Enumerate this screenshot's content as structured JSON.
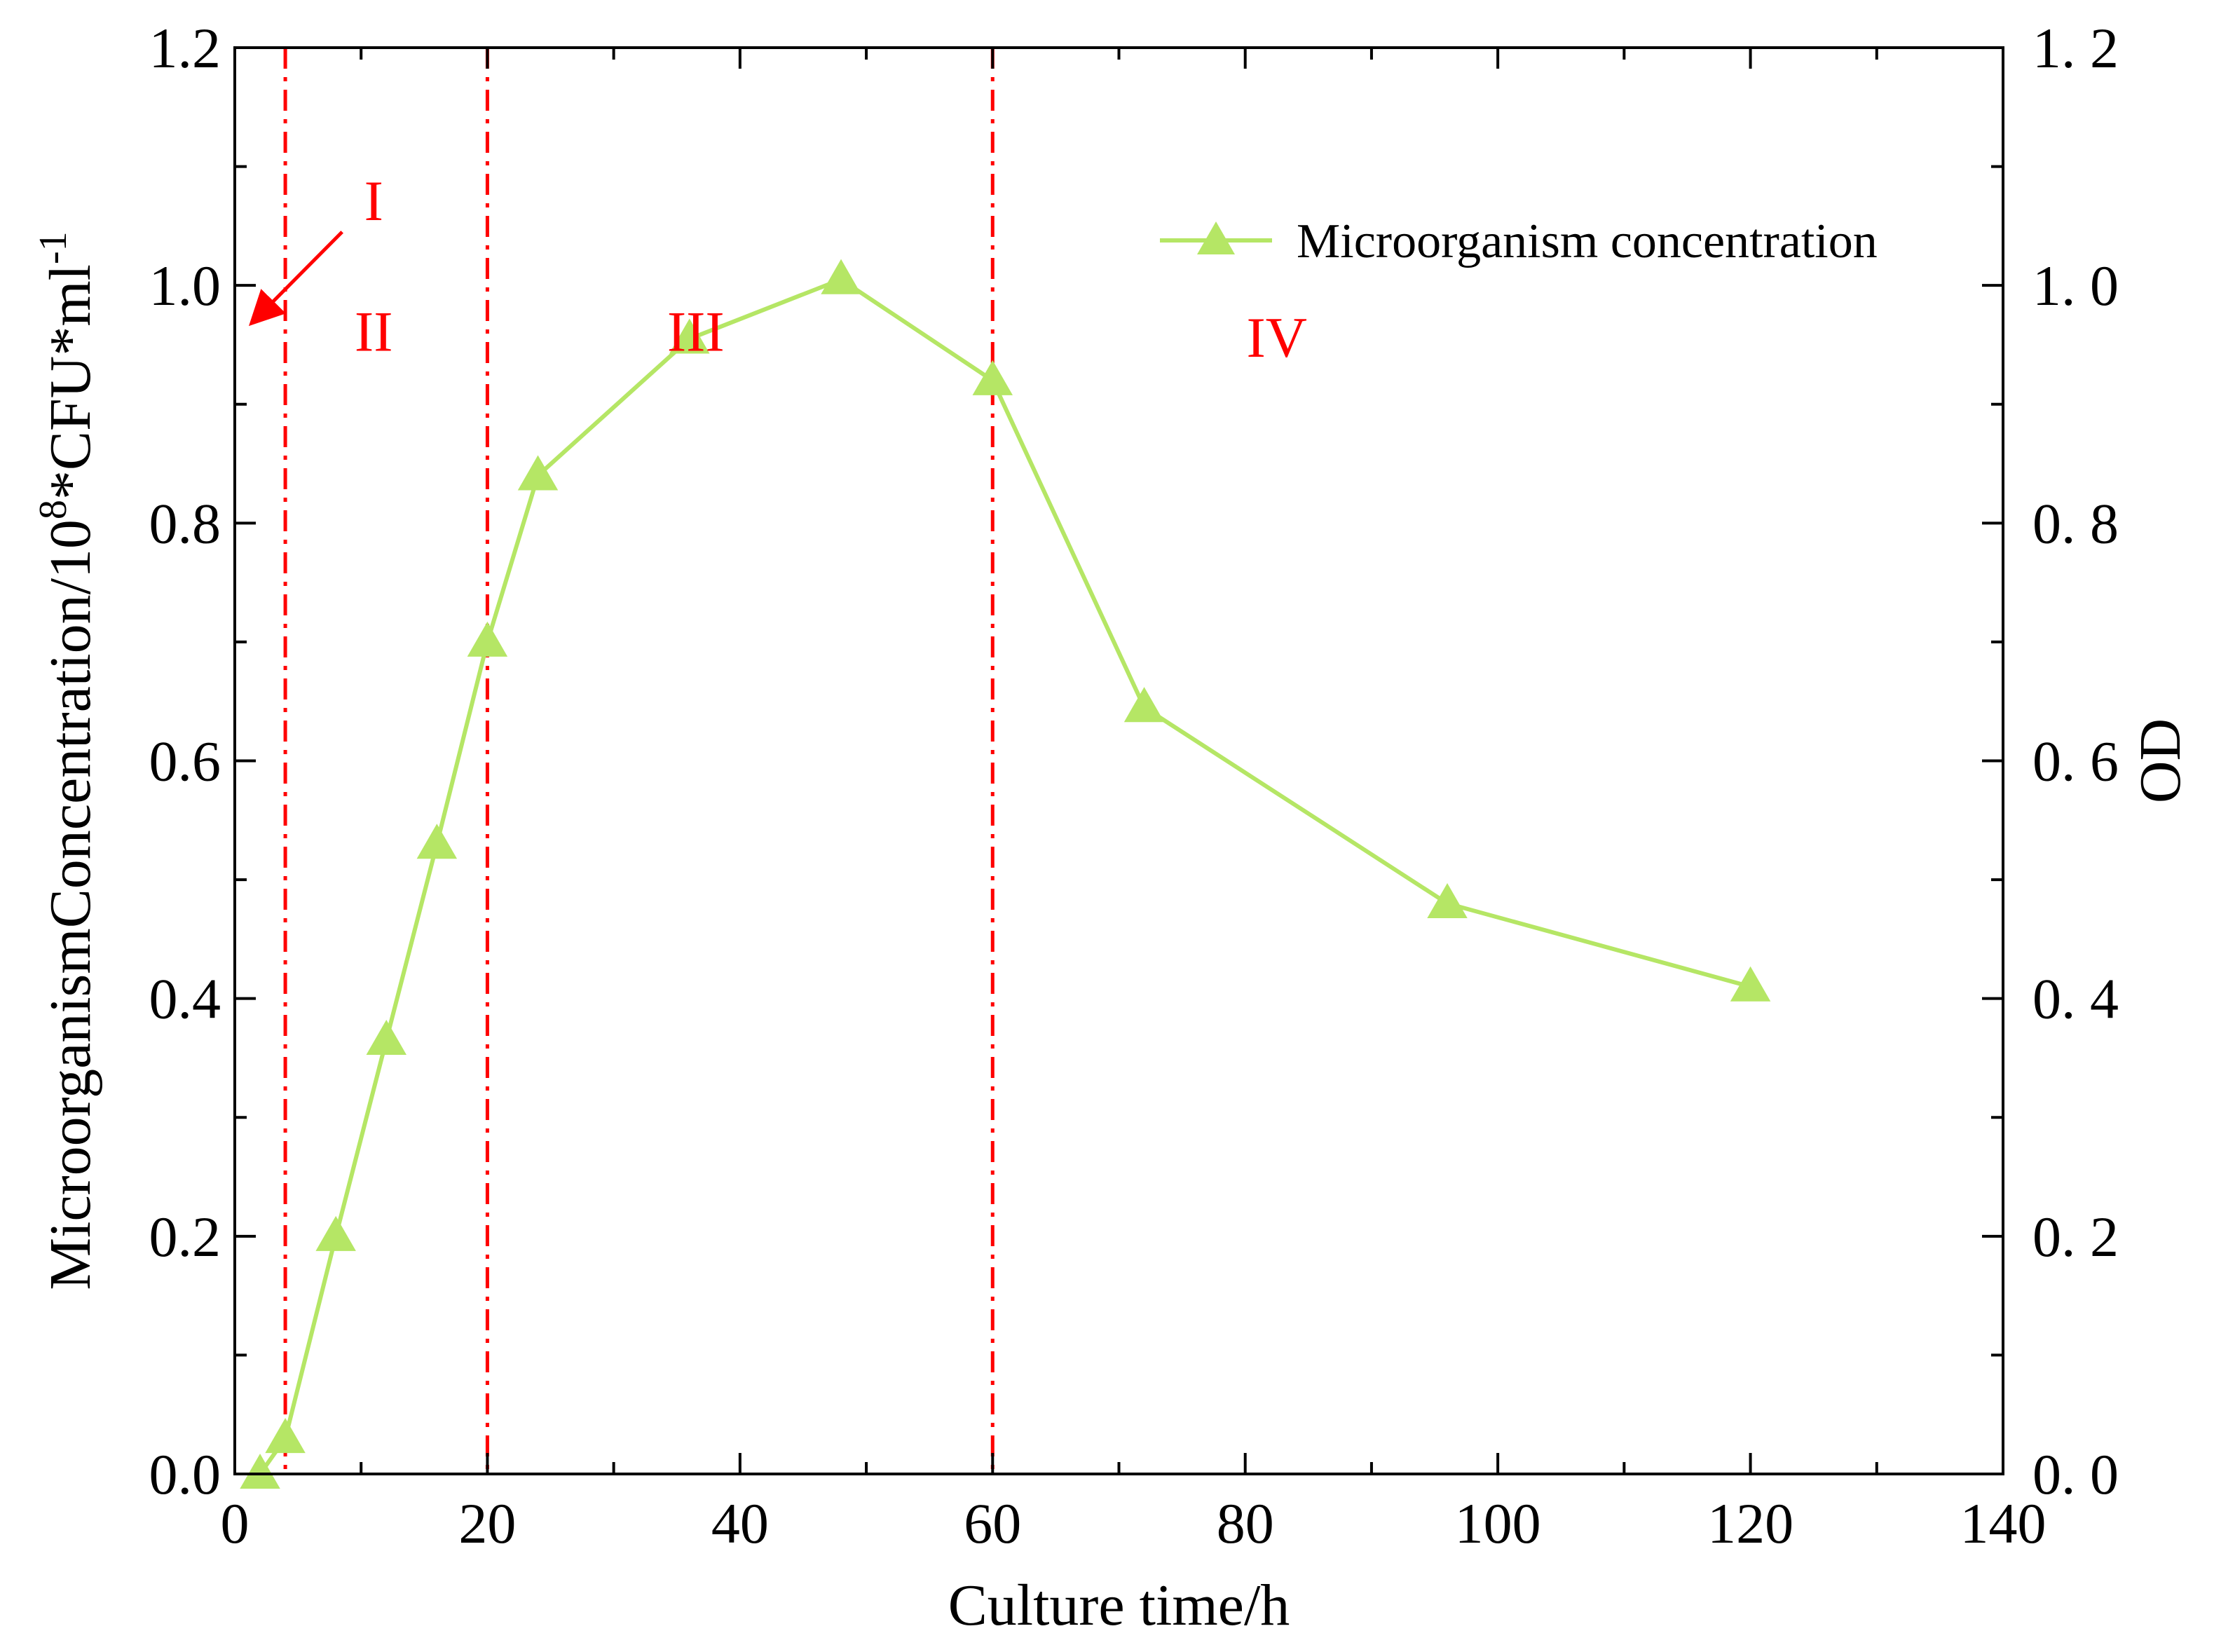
{
  "chart_data": {
    "type": "line",
    "title": "",
    "xlabel": "Culture time/h",
    "ylabel": {
      "main": "MicroorganismConcentration/10",
      "exp1": "8",
      "mid": "*CFU*ml",
      "exp2": "-1"
    },
    "y2label": "OD",
    "xlim": [
      0,
      140
    ],
    "ylim": [
      0,
      1.2
    ],
    "y2lim": [
      0,
      1.2
    ],
    "xticks": [
      "0",
      "20",
      "40",
      "60",
      "80",
      "100",
      "120",
      "140"
    ],
    "yticks": [
      "0.0",
      "0.2",
      "0.4",
      "0.6",
      "0.8",
      "1.0",
      "1.2"
    ],
    "y2ticks": [
      "0. 0",
      "0. 2",
      "0. 4",
      "0. 6",
      "0. 8",
      "1. 0",
      "1. 2"
    ],
    "legend_position": "top-right",
    "series": [
      {
        "name": "Microorganism concentration",
        "color": "#b5e665",
        "marker": "triangle",
        "x": [
          2,
          4,
          8,
          12,
          16,
          20,
          24,
          36,
          48,
          60,
          72,
          96,
          120
        ],
        "y": [
          0.0,
          0.03,
          0.2,
          0.365,
          0.53,
          0.7,
          0.84,
          0.955,
          1.005,
          0.92,
          0.645,
          0.48,
          0.41
        ]
      }
    ],
    "vlines": {
      "x": [
        4,
        20,
        60
      ],
      "color": "#ff0000",
      "style": "dash-dot"
    },
    "regions": [
      {
        "label": "I",
        "x": 11,
        "y": 1.055
      },
      {
        "label": "II",
        "x": 11,
        "y": 0.945
      },
      {
        "label": "III",
        "x": 36.5,
        "y": 0.945
      },
      {
        "label": "IV",
        "x": 82.5,
        "y": 0.94
      }
    ],
    "arrow": {
      "from": [
        8.5,
        1.045
      ],
      "to": [
        1.5,
        0.97
      ],
      "color": "#ff0000"
    }
  }
}
